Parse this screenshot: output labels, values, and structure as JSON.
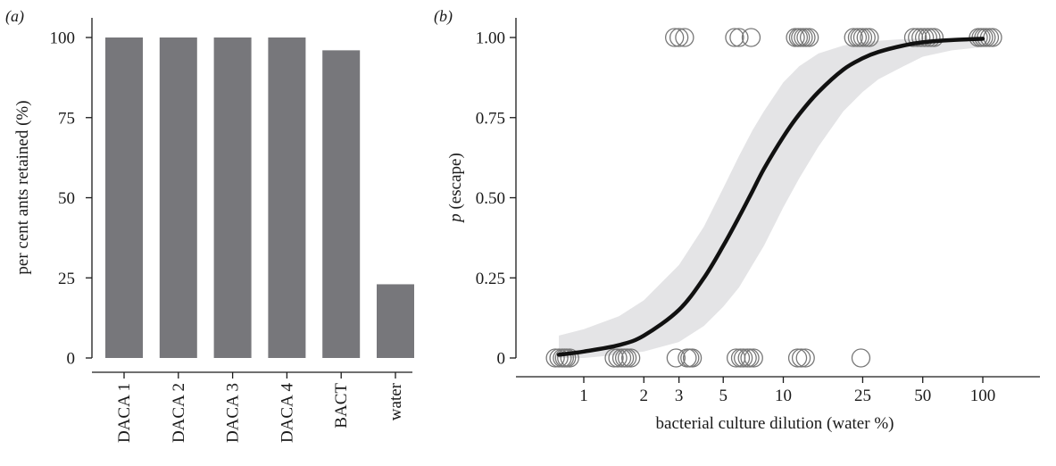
{
  "chart_data": [
    {
      "panel_label": "(a)",
      "type": "bar",
      "categories": [
        "DACA 1",
        "DACA 2",
        "DACA 3",
        "DACA 4",
        "BACT",
        "water"
      ],
      "values": [
        100,
        100,
        100,
        100,
        96,
        23
      ],
      "ylabel": "per cent ants retained (%)",
      "xlabel": "",
      "ylim": [
        0,
        100
      ],
      "yticks": [
        0,
        25,
        50,
        75,
        100
      ],
      "bar_color": "#77777b",
      "grid": false
    },
    {
      "panel_label": "(b)",
      "type": "scatter",
      "xlabel": "bacterial culture dilution (water %)",
      "ylabel_italic": "p",
      "ylabel_rest": " (escape)",
      "x_scale": "log",
      "xlim": [
        0.55,
        130
      ],
      "ylim": [
        0,
        1
      ],
      "xticks": [
        1,
        2,
        3,
        5,
        10,
        25,
        50,
        100
      ],
      "yticks": [
        0,
        0.25,
        0.5,
        0.75,
        1.0
      ],
      "ytick_labels": [
        "0",
        "0.25",
        "0.50",
        "0.75",
        "1.00"
      ],
      "grid": false,
      "points": [
        {
          "x": 0.72,
          "y": 0
        },
        {
          "x": 0.75,
          "y": 0
        },
        {
          "x": 0.78,
          "y": 0
        },
        {
          "x": 0.8,
          "y": 0
        },
        {
          "x": 0.82,
          "y": 0
        },
        {
          "x": 0.85,
          "y": 0
        },
        {
          "x": 1.42,
          "y": 0
        },
        {
          "x": 1.48,
          "y": 0
        },
        {
          "x": 1.55,
          "y": 0
        },
        {
          "x": 1.6,
          "y": 0
        },
        {
          "x": 1.65,
          "y": 0
        },
        {
          "x": 1.72,
          "y": 0
        },
        {
          "x": 2.9,
          "y": 0
        },
        {
          "x": 3.3,
          "y": 0
        },
        {
          "x": 3.4,
          "y": 0
        },
        {
          "x": 3.5,
          "y": 0
        },
        {
          "x": 5.8,
          "y": 0
        },
        {
          "x": 6.1,
          "y": 0
        },
        {
          "x": 6.3,
          "y": 0
        },
        {
          "x": 6.6,
          "y": 0
        },
        {
          "x": 6.8,
          "y": 0
        },
        {
          "x": 7.1,
          "y": 0
        },
        {
          "x": 11.8,
          "y": 0
        },
        {
          "x": 12.3,
          "y": 0
        },
        {
          "x": 12.9,
          "y": 0
        },
        {
          "x": 24.5,
          "y": 0
        },
        {
          "x": 2.85,
          "y": 1
        },
        {
          "x": 3.0,
          "y": 1
        },
        {
          "x": 3.2,
          "y": 1
        },
        {
          "x": 5.7,
          "y": 1
        },
        {
          "x": 6.0,
          "y": 1
        },
        {
          "x": 6.9,
          "y": 1
        },
        {
          "x": 11.5,
          "y": 1
        },
        {
          "x": 11.9,
          "y": 1
        },
        {
          "x": 12.2,
          "y": 1
        },
        {
          "x": 12.6,
          "y": 1
        },
        {
          "x": 13.0,
          "y": 1
        },
        {
          "x": 13.5,
          "y": 1
        },
        {
          "x": 22.5,
          "y": 1
        },
        {
          "x": 23.5,
          "y": 1
        },
        {
          "x": 24.2,
          "y": 1
        },
        {
          "x": 25.0,
          "y": 1
        },
        {
          "x": 26.0,
          "y": 1
        },
        {
          "x": 27.0,
          "y": 1
        },
        {
          "x": 45,
          "y": 1
        },
        {
          "x": 47,
          "y": 1
        },
        {
          "x": 49,
          "y": 1
        },
        {
          "x": 51,
          "y": 1
        },
        {
          "x": 53,
          "y": 1
        },
        {
          "x": 55,
          "y": 1
        },
        {
          "x": 57,
          "y": 1
        },
        {
          "x": 95,
          "y": 1
        },
        {
          "x": 98,
          "y": 1
        },
        {
          "x": 101,
          "y": 1
        },
        {
          "x": 104,
          "y": 1
        },
        {
          "x": 108,
          "y": 1
        },
        {
          "x": 112,
          "y": 1
        }
      ],
      "fit_curve": {
        "x": [
          0.75,
          1,
          1.5,
          2,
          3,
          4,
          5,
          6,
          7,
          8,
          10,
          12,
          15,
          20,
          25,
          30,
          40,
          50,
          70,
          100
        ],
        "y": [
          0.01,
          0.02,
          0.04,
          0.07,
          0.15,
          0.25,
          0.35,
          0.44,
          0.52,
          0.59,
          0.69,
          0.76,
          0.83,
          0.9,
          0.935,
          0.955,
          0.975,
          0.985,
          0.992,
          0.996
        ],
        "color": "#111111"
      },
      "confidence_band": {
        "x": [
          0.75,
          1,
          1.5,
          2,
          3,
          4,
          5,
          6,
          7,
          8,
          10,
          12,
          15,
          20,
          25,
          30,
          40,
          50,
          70,
          100
        ],
        "lower": [
          0.0,
          0.0,
          0.01,
          0.02,
          0.05,
          0.1,
          0.16,
          0.22,
          0.29,
          0.35,
          0.47,
          0.56,
          0.66,
          0.77,
          0.83,
          0.87,
          0.91,
          0.94,
          0.96,
          0.97
        ],
        "upper": [
          0.07,
          0.09,
          0.13,
          0.18,
          0.29,
          0.41,
          0.53,
          0.63,
          0.71,
          0.77,
          0.86,
          0.91,
          0.95,
          0.975,
          0.985,
          0.99,
          0.995,
          0.997,
          0.999,
          1.0
        ],
        "color": "#e4e4e6"
      },
      "marker_stroke": "#777777"
    }
  ]
}
